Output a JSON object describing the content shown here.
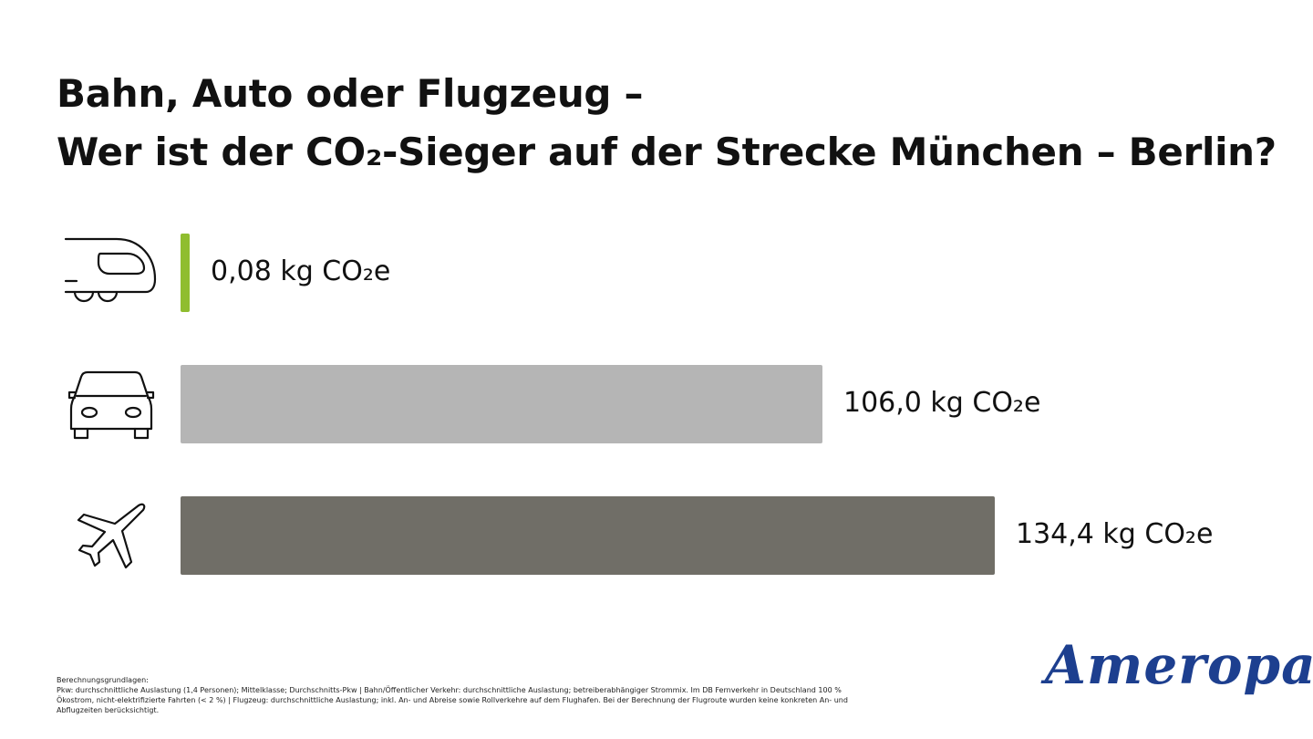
{
  "title": {
    "line1": "Bahn, Auto oder Flugzeug –",
    "line2": "Wer ist der CO₂-Sieger auf der Strecke München – Berlin?"
  },
  "chart_data": {
    "type": "bar",
    "orientation": "horizontal",
    "categories": [
      "Bahn",
      "Auto",
      "Flugzeug"
    ],
    "icons": [
      "train-icon",
      "car-icon",
      "plane-icon"
    ],
    "values": [
      0.08,
      106.0,
      134.4
    ],
    "labels": [
      "0,08 kg CO₂e",
      "106,0 kg CO₂e",
      "134,4 kg CO₂e"
    ],
    "colors": [
      "#8fbd2f",
      "#b5b5b5",
      "#706e67"
    ],
    "unit": "kg CO₂e",
    "grid": false
  },
  "footnote": {
    "heading": "Berechnungsgrundlagen:",
    "text": "Pkw: durchschnittliche Auslastung (1,4 Personen); Mittelklasse; Durchschnitts-Pkw | Bahn/Öffentlicher Verkehr: durchschnittliche Auslastung; betreiberabhängiger Strommix. Im DB Fernverkehr in Deutschland 100 % Ökostrom, nicht-elektrifizierte Fahrten (< 2 %) | Flugzeug: durchschnittliche Auslastung; inkl. An- und Abreise sowie Rollverkehre auf dem Flughafen. Bei der Berechnung der Flugroute wurden keine konkreten An- und Abflugzeiten berücksichtigt."
  },
  "logo": {
    "text": "Ameropa",
    "color": "#1d3f8f"
  }
}
